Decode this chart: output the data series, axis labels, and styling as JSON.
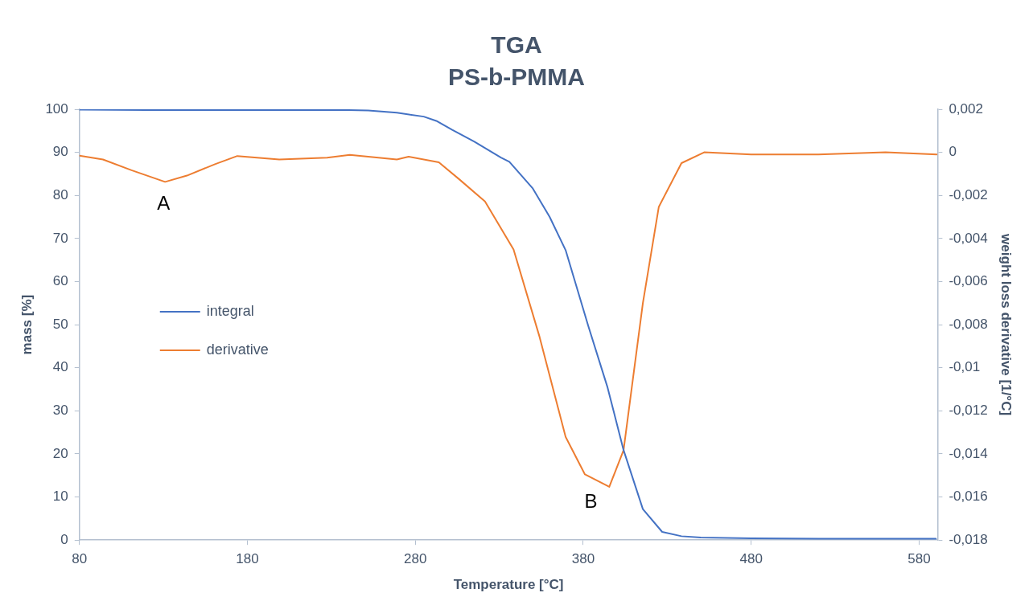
{
  "chart_data": {
    "type": "line",
    "title": "TGA",
    "subtitle": "PS-b-PMMA",
    "xlabel": "Temperature [°C]",
    "ylabel": "mass [%]",
    "y2label": "weight loss derivative [1/°C]",
    "xlim": [
      80,
      591
    ],
    "xticks": [
      80,
      180,
      280,
      380,
      480,
      580
    ],
    "ylim": [
      0,
      100
    ],
    "yticks": [
      0,
      10,
      20,
      30,
      40,
      50,
      60,
      70,
      80,
      90,
      100
    ],
    "y2lim": [
      -0.018,
      0.002
    ],
    "y2ticks": [
      {
        "value": -0.018,
        "label": "-0,018"
      },
      {
        "value": -0.016,
        "label": "-0,016"
      },
      {
        "value": -0.014,
        "label": "-0,014"
      },
      {
        "value": -0.012,
        "label": "-0,012"
      },
      {
        "value": -0.01,
        "label": "-0,01"
      },
      {
        "value": -0.008,
        "label": "-0,008"
      },
      {
        "value": -0.006,
        "label": "-0,006"
      },
      {
        "value": -0.004,
        "label": "-0,004"
      },
      {
        "value": -0.002,
        "label": "-0,002"
      },
      {
        "value": 0,
        "label": "0"
      },
      {
        "value": 0.002,
        "label": "0,002"
      }
    ],
    "grid": false,
    "legend": "left",
    "marker": "none",
    "line_style": "solid",
    "annotations": [
      "A",
      "B"
    ],
    "series": [
      {
        "name": "integral",
        "color": "#4472c4",
        "x": [
          80,
          120,
          160,
          200,
          240,
          252,
          269,
          285,
          292.5,
          302,
          315,
          331,
          336,
          350,
          360,
          369.5,
          383,
          394.5,
          404,
          415.5,
          427,
          438.5,
          450,
          480,
          530,
          590
        ],
        "values": [
          99.9,
          99.8,
          99.8,
          99.8,
          99.8,
          99.7,
          99.2,
          98.3,
          97.3,
          95.2,
          92.5,
          88.8,
          87.8,
          81.6,
          75,
          67.3,
          49.7,
          35.4,
          20.9,
          7.2,
          1.9,
          0.9,
          0.6,
          0.4,
          0.3,
          0.3
        ]
      },
      {
        "name": "derivative",
        "color": "#ed7d31",
        "axis": "y2",
        "x": [
          80,
          94,
          111,
          131,
          144,
          161,
          174,
          199,
          227.5,
          241,
          269,
          276,
          294,
          306,
          321.5,
          338.5,
          354,
          369.5,
          381,
          395.5,
          404,
          415.5,
          425,
          438.5,
          452,
          480,
          520,
          560,
          590.5
        ],
        "values": [
          -0.00015,
          -0.00033,
          -0.00083,
          -0.00137,
          -0.00108,
          -0.00054,
          -0.00017,
          -0.00033,
          -0.00025,
          -0.00012,
          -0.00033,
          -0.0002,
          -0.00046,
          -0.00124,
          -0.00228,
          -0.00451,
          -0.00857,
          -0.01321,
          -0.01495,
          -0.01553,
          -0.01383,
          -0.007,
          -0.00253,
          -0.0005,
          0,
          -0.0001,
          -0.0001,
          0,
          -0.0001
        ]
      }
    ]
  }
}
